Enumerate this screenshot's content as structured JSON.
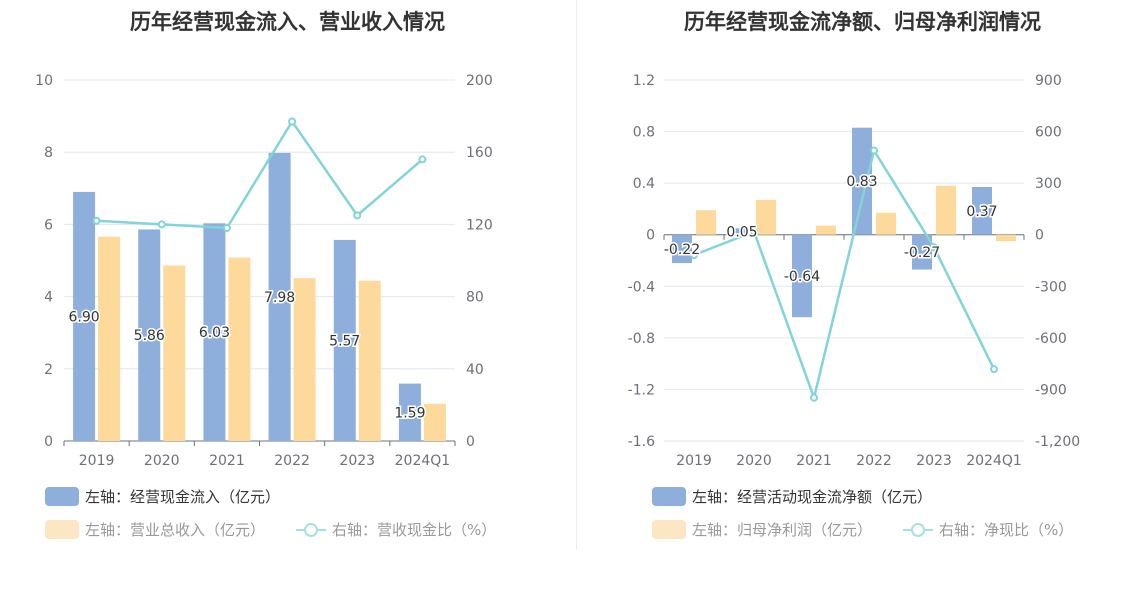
{
  "chart_data": [
    {
      "type": "bar",
      "title": "历年经营现金流入、营业收入情况",
      "categories": [
        "2019",
        "2020",
        "2021",
        "2022",
        "2023",
        "2024Q1"
      ],
      "left_axis": {
        "min": 0,
        "max": 10,
        "ticks": [
          "0",
          "2",
          "4",
          "6",
          "8",
          "10"
        ]
      },
      "right_axis": {
        "min": 0,
        "max": 200,
        "ticks": [
          "0",
          "40",
          "80",
          "120",
          "160",
          "200"
        ]
      },
      "series": [
        {
          "name": "左轴：经营现金流入（亿元）",
          "type": "bar",
          "axis": "left",
          "color": "#8eaedb",
          "values": [
            6.9,
            5.86,
            6.03,
            7.98,
            5.57,
            1.59
          ],
          "labels": [
            "6.90",
            "5.86",
            "6.03",
            "7.98",
            "5.57",
            "1.59"
          ]
        },
        {
          "name": "左轴：营业总收入（亿元）",
          "type": "bar",
          "axis": "left",
          "color": "#fdd99b",
          "values": [
            5.66,
            4.86,
            5.08,
            4.51,
            4.44,
            1.03
          ]
        },
        {
          "name": "右轴：营收现金比（%）",
          "type": "line",
          "axis": "right",
          "color": "#82d4d6",
          "values": [
            122,
            120,
            118,
            177,
            125,
            156
          ]
        }
      ],
      "grid": true,
      "legend": "bottom-left"
    },
    {
      "type": "bar",
      "title": "历年经营现金流净额、归母净利润情况",
      "categories": [
        "2019",
        "2020",
        "2021",
        "2022",
        "2023",
        "2024Q1"
      ],
      "left_axis": {
        "min": -1.6,
        "max": 1.2,
        "ticks": [
          "-1.6",
          "-1.2",
          "-0.8",
          "-0.4",
          "0",
          "0.4",
          "0.8",
          "1.2"
        ]
      },
      "right_axis": {
        "min": -1200,
        "max": 900,
        "ticks": [
          "-1,200",
          "-900",
          "-600",
          "-300",
          "0",
          "300",
          "600",
          "900"
        ]
      },
      "series": [
        {
          "name": "左轴：经营活动现金流净额（亿元）",
          "type": "bar",
          "axis": "left",
          "color": "#8eaedb",
          "values": [
            -0.22,
            0.05,
            -0.64,
            0.83,
            -0.27,
            0.37
          ],
          "labels": [
            "-0.22",
            "0.05",
            "-0.64",
            "0.83",
            "-0.27",
            "0.37"
          ]
        },
        {
          "name": "左轴：归母净利润（亿元）",
          "type": "bar",
          "axis": "left",
          "color": "#fdd99b",
          "values": [
            0.19,
            0.27,
            0.07,
            0.17,
            0.38,
            -0.05
          ]
        },
        {
          "name": "右轴：净现比（%）",
          "type": "line",
          "axis": "right",
          "color": "#82d4d6",
          "values": [
            -118,
            18,
            -948,
            490,
            -73,
            -782
          ]
        }
      ],
      "grid": true,
      "legend": "bottom-left"
    }
  ]
}
